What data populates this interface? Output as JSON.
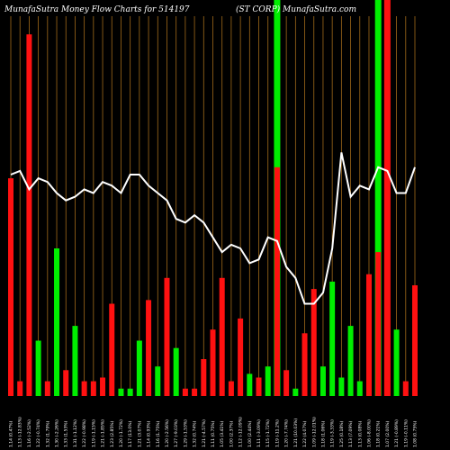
{
  "chart_data": {
    "type": "bar",
    "title": "MunafaSutra  Money Flow  Charts for 514197",
    "subtitle": "(ST CORP) MunafaSutra.com",
    "colors": {
      "background": "#000000",
      "up": "#00ee00",
      "down": "#ff1111",
      "grid": "#a06a1a",
      "line": "#ffffff"
    },
    "ylim": [
      0,
      100
    ],
    "categories": [
      "1.14 (0.47%)",
      "1.13 (-12.83%)",
      "1.16 (-2.52%)",
      "1.22 (-0.74%)",
      "1.32 (1.79%)",
      "1.30 (-2.26%)",
      "1.33 (1.53%)",
      "1.31 (-1.12%)",
      "1.22 (-0.98%)",
      "1.19 (-1.15%)",
      "1.21 (-1.85%)",
      "1.23 (2.85%)",
      "1.20 (-1.72%)",
      "1.17 (13.0%)",
      "1.21 (3.07%)",
      "1.14 (0.93%)",
      "1.16 (1.75%)",
      "1.20 (-2.56%)",
      "1.27 (-9.03%)",
      "1.29 (-1.53%)",
      "1.32 (0.74%)",
      "1.21 (-4.57%)",
      "1.11 (0.75%)",
      "1.05 (3.41%)",
      "1.00 (2.37%)",
      "1.12 (-12.09%)",
      "1.00 (2.44%)",
      "1.11 (-3.09%)",
      "1.15 (-1.72%)",
      "1.19 (-11.2%)",
      "1.20 (-7.74%)",
      "1.21 (10.03%)",
      "1.22 (4.07%)",
      "1.09 (-12.01%)",
      "1.18 (1.06%)",
      "1.19 (-3.33%)",
      "1.25 (0.18%)",
      "1.13 (7.09%)",
      "1.13 (0.08%)",
      "1.06 (-8.00%)",
      "1.18 (0.21%)",
      "1.07 (2.00%)",
      "1.21 (-0.89%)",
      "1.19 (-0.11%)",
      "1.08 (0.75%)"
    ],
    "colors_per_bar": [
      "down",
      "down",
      "down",
      "up",
      "down",
      "up",
      "down",
      "up",
      "down",
      "down",
      "down",
      "down",
      "up",
      "up",
      "up",
      "down",
      "up",
      "down",
      "up",
      "down",
      "down",
      "down",
      "down",
      "down",
      "down",
      "down",
      "up",
      "down",
      "up",
      "down",
      "down",
      "up",
      "down",
      "down",
      "up",
      "up",
      "up",
      "up",
      "up",
      "down",
      "down",
      "down",
      "up",
      "down",
      "down"
    ],
    "values": [
      59,
      4,
      98,
      15,
      4,
      40,
      7,
      19,
      4,
      4,
      5,
      25,
      2,
      2,
      15,
      26,
      8,
      32,
      13,
      2,
      2,
      10,
      18,
      32,
      4,
      21,
      6,
      5,
      8,
      62,
      7,
      2,
      17,
      29,
      8,
      31,
      5,
      19,
      4,
      33,
      39,
      4,
      18,
      4,
      30
    ],
    "line": [
      60,
      61,
      56,
      59,
      58,
      55,
      53,
      54,
      56,
      55,
      58,
      57,
      55,
      60,
      60,
      57,
      55,
      53,
      48,
      47,
      49,
      47,
      43,
      39,
      41,
      40,
      36,
      37,
      43,
      42,
      35,
      32,
      25,
      25,
      28,
      40,
      66,
      54,
      57,
      56,
      62,
      61,
      55,
      55,
      62
    ],
    "highlight_bands": [
      {
        "index": 29,
        "color": "up"
      },
      {
        "index": 40,
        "color": "up"
      },
      {
        "index": 41,
        "color": "down"
      }
    ]
  }
}
